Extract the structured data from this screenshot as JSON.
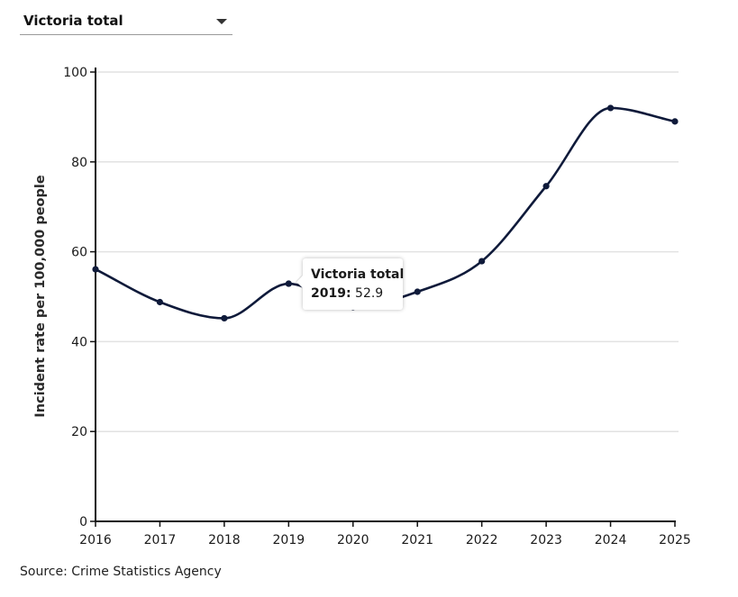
{
  "selector": {
    "selected": "Victoria total"
  },
  "tooltip": {
    "title": "Victoria total",
    "year": "2019",
    "sep": ":",
    "value": "52.9"
  },
  "source": "Source: Crime Statistics Agency",
  "colors": {
    "line": "#0f1a3a",
    "grid": "#e2e2e2",
    "axis": "#111111"
  },
  "chart_data": {
    "type": "line",
    "title": "",
    "xlabel": "",
    "ylabel": "Incident rate per 100,000 people",
    "x": [
      "2016",
      "2017",
      "2018",
      "2019",
      "2020",
      "2021",
      "2022",
      "2023",
      "2024",
      "2025"
    ],
    "series": [
      {
        "name": "Victoria total",
        "values": [
          56.1,
          48.8,
          45.2,
          52.9,
          47.7,
          51.1,
          57.9,
          74.6,
          92.0,
          89.0
        ]
      }
    ],
    "ylim": [
      0,
      100
    ],
    "yticks": [
      0,
      20,
      40,
      60,
      80,
      100
    ],
    "grid": "horizontal",
    "legend": "none"
  }
}
